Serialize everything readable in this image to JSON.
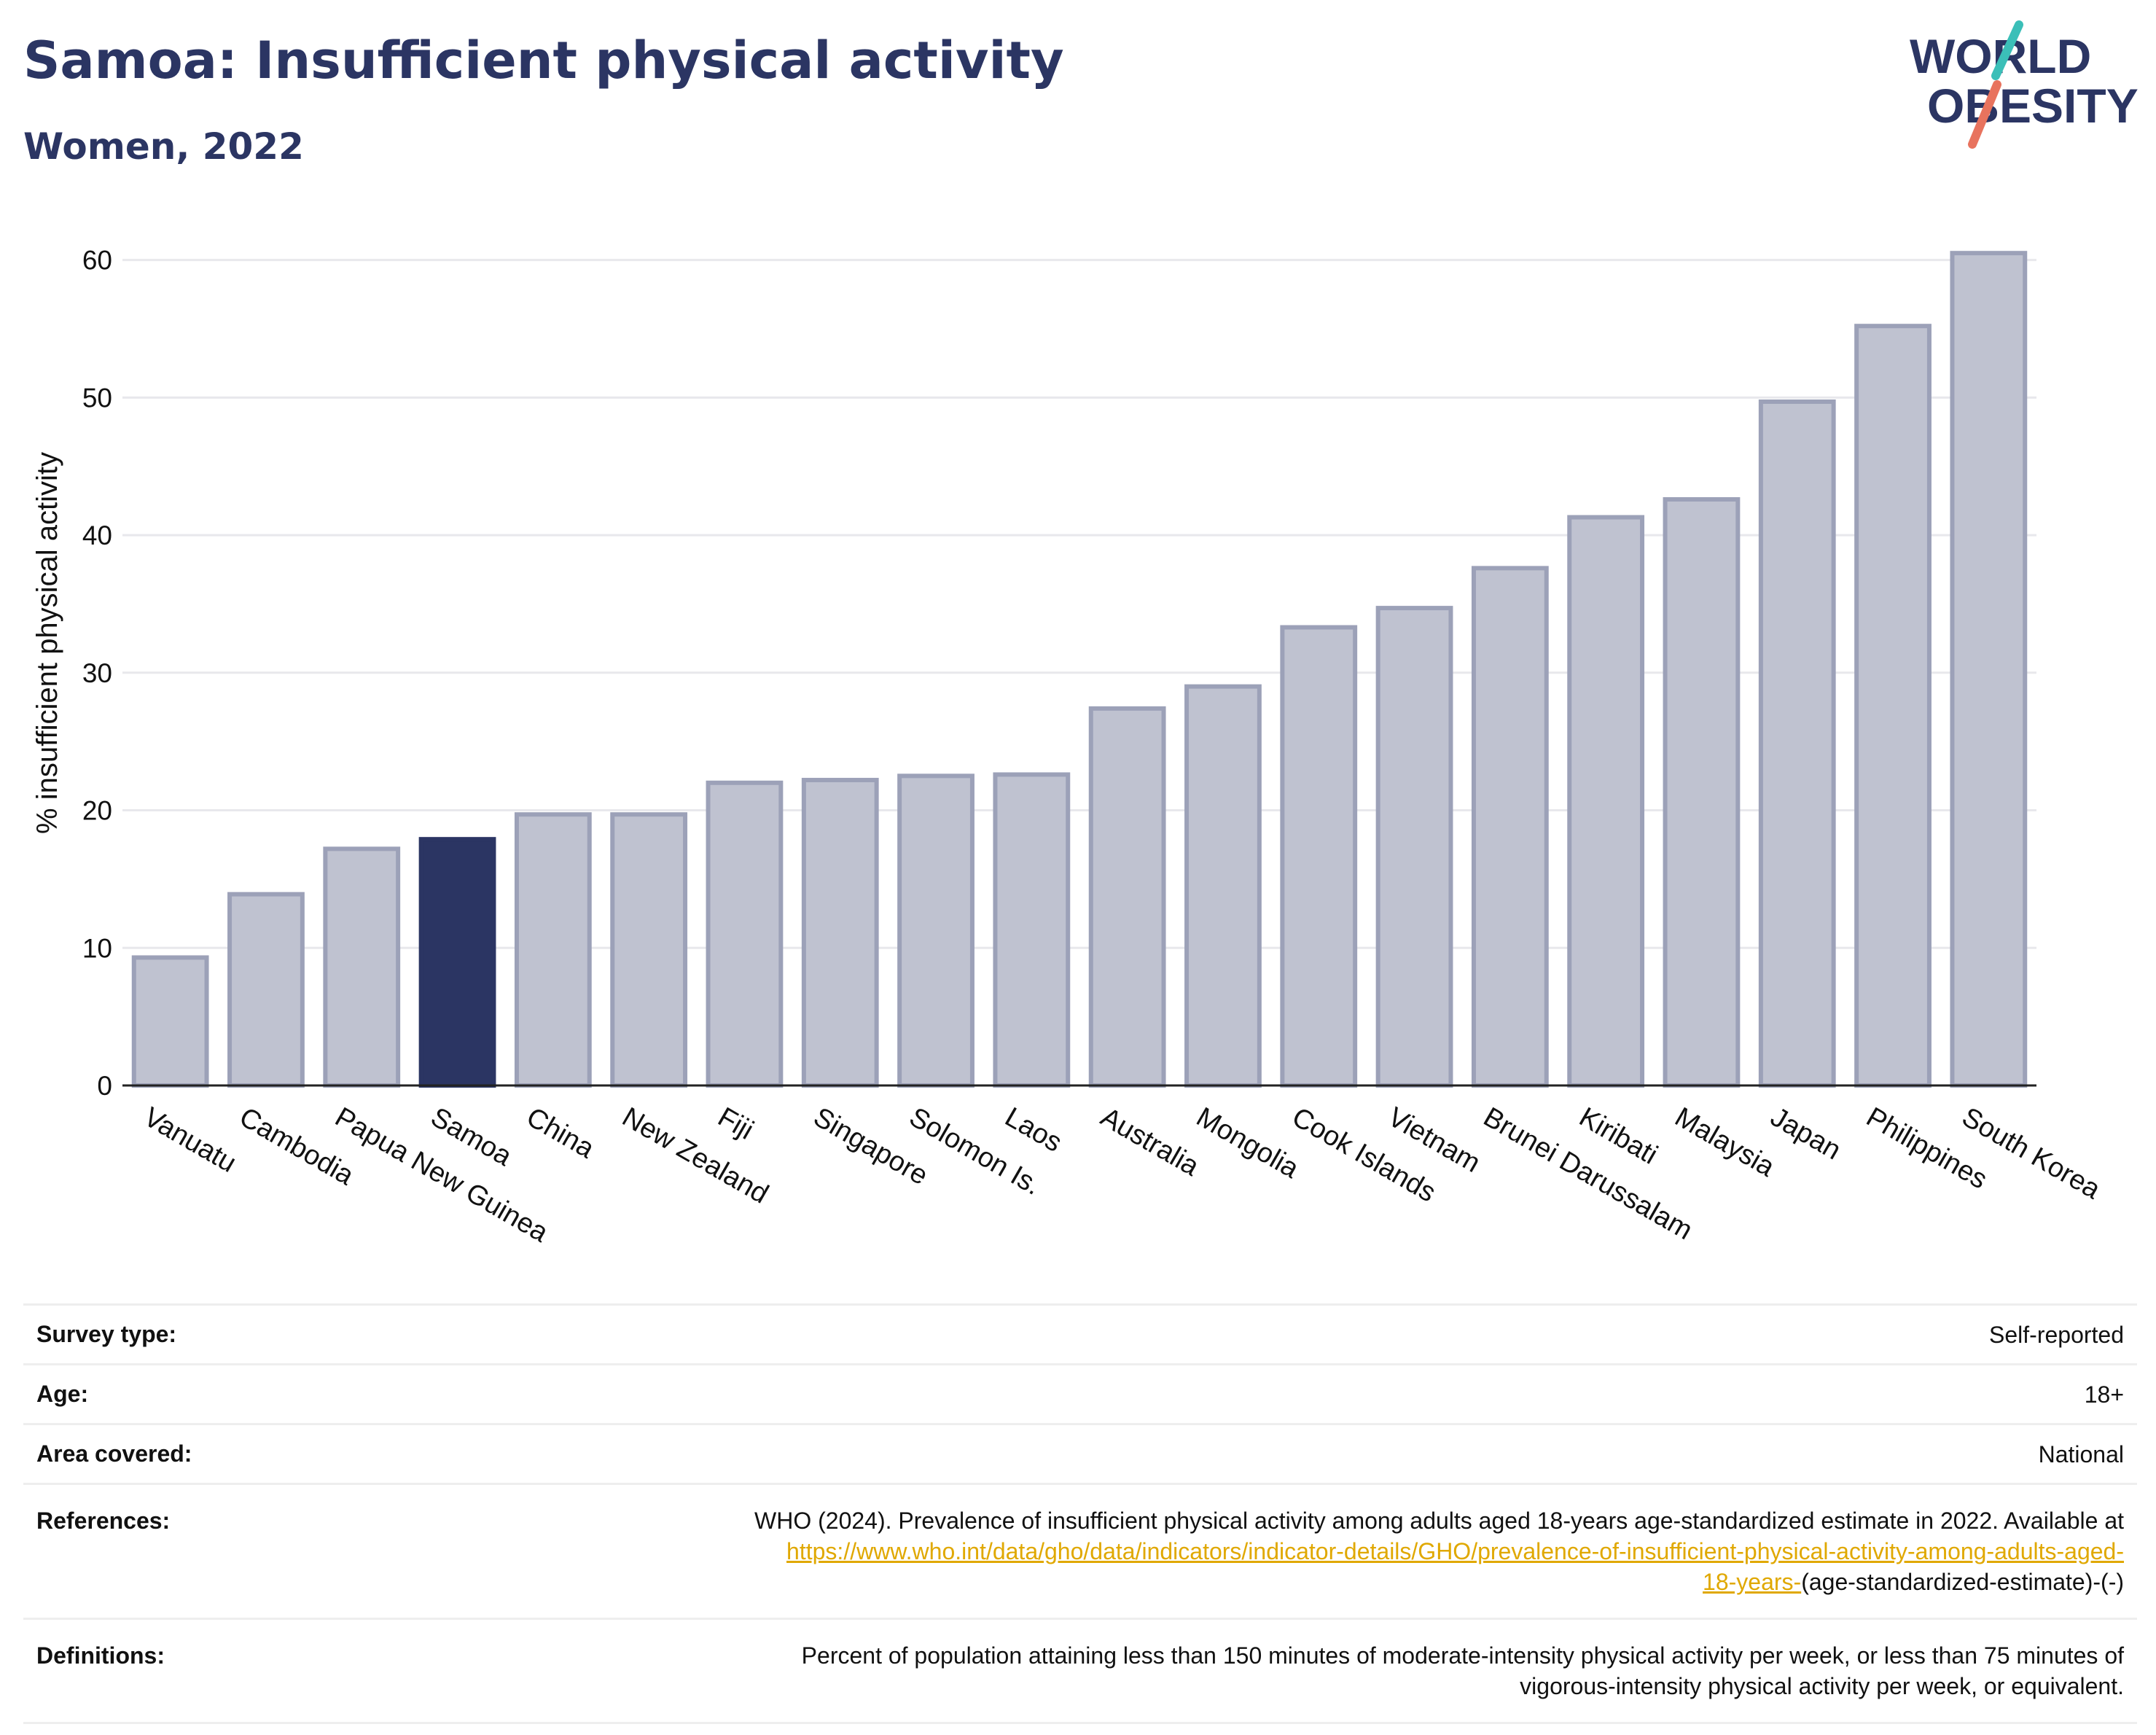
{
  "header": {
    "title": "Samoa: Insufficient physical activity",
    "subtitle": "Women, 2022"
  },
  "logo": {
    "line1": "WORLD",
    "line2": "OBESITY"
  },
  "colors": {
    "highlight": "#2b3563",
    "bar_fill": "#bfc2d0",
    "bar_stroke": "#9ca1b8",
    "grid": "#e8e8ec",
    "link": "#e0a800",
    "logo_teal": "#3bbfb8",
    "logo_coral": "#e8735e"
  },
  "chart_data": {
    "type": "bar",
    "ylabel": "% insufficient physical activity",
    "xlabel": "",
    "ylim": [
      0,
      63
    ],
    "yticks": [
      0,
      10,
      20,
      30,
      40,
      50,
      60
    ],
    "grid": true,
    "highlight": "Samoa",
    "categories": [
      "Vanuatu",
      "Cambodia",
      "Papua New Guinea",
      "Samoa",
      "China",
      "New Zealand",
      "Fiji",
      "Singapore",
      "Solomon Is.",
      "Laos",
      "Australia",
      "Mongolia",
      "Cook Islands",
      "Vietnam",
      "Brunei Darussalam",
      "Kiribati",
      "Malaysia",
      "Japan",
      "Philippines",
      "South Korea"
    ],
    "values": [
      9.3,
      13.9,
      17.2,
      17.9,
      19.7,
      19.7,
      22.0,
      22.2,
      22.5,
      22.6,
      27.4,
      29.0,
      33.3,
      34.7,
      37.6,
      41.3,
      42.6,
      49.7,
      55.2,
      60.5
    ]
  },
  "meta": {
    "survey_label": "Survey type:",
    "survey_value": "Self-reported",
    "age_label": "Age:",
    "age_value": "18+",
    "area_label": "Area covered:",
    "area_value": "National",
    "references_label": "References:",
    "references_line1": "WHO (2024). Prevalence of insufficient physical activity among adults aged 18-years age-standardized estimate in 2022. Available at",
    "references_link_a": "https://www.who.int/data/gho/data/indicators/indicator-details/GHO/prevalence-of-insufficient-physical-activity-among-adults-aged-",
    "references_link_b": "18-years-",
    "references_tail": "(age-standardized-estimate)-(-)",
    "definitions_label": "Definitions:",
    "definitions_line1": "Percent of population attaining less than 150 minutes of moderate-intensity physical activity per week, or less than 75 minutes of",
    "definitions_line2": "vigorous-intensity physical activity per week, or equivalent."
  }
}
